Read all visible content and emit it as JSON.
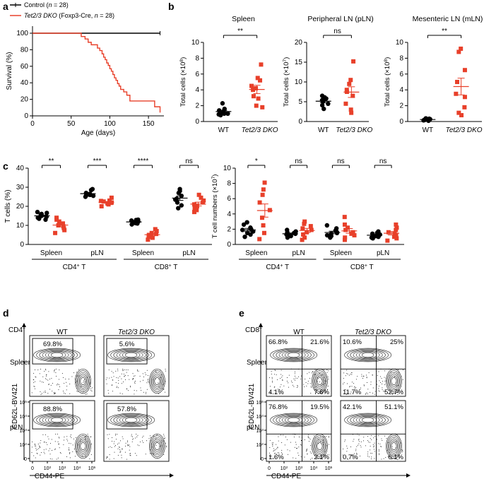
{
  "colors": {
    "control": "#000000",
    "ko": "#e8402a",
    "axis": "#000000"
  },
  "panels": {
    "a": "a",
    "b": "b",
    "c": "c",
    "d": "d",
    "e": "e"
  },
  "chart_data": [
    {
      "id": "a",
      "type": "line",
      "legend": [
        {
          "label": "Control (",
          "label_n": "n",
          "label_rest": " = 28)",
          "color": "#000000"
        },
        {
          "label_italic": "Tet2/3 DKO",
          "label": " (Foxp3-Cre, ",
          "label_n": "n",
          "label_rest": " = 28)",
          "color": "#e8402a"
        }
      ],
      "xlabel": "Age (days)",
      "ylabel": "Survival (%)",
      "xlim": [
        0,
        170
      ],
      "ylim": [
        0,
        100
      ],
      "xticks": [
        "0",
        "50",
        "100",
        "150"
      ],
      "yticks": [
        "0",
        "20",
        "40",
        "60",
        "80",
        "100"
      ],
      "series": [
        {
          "name": "Control",
          "x": [
            0,
            165
          ],
          "y": [
            100,
            100
          ]
        },
        {
          "name": "Tet2/3 DKO",
          "x": [
            0,
            57,
            63,
            68,
            72,
            76,
            80,
            84,
            87,
            90,
            92,
            94,
            96,
            98,
            100,
            102,
            104,
            106,
            108,
            110,
            112,
            114,
            118,
            122,
            126,
            150,
            158,
            165
          ],
          "y": [
            100,
            100,
            96,
            93,
            89,
            86,
            86,
            82,
            79,
            75,
            71,
            68,
            64,
            61,
            57,
            54,
            50,
            46,
            43,
            39,
            36,
            32,
            29,
            25,
            18,
            18,
            11,
            4
          ]
        }
      ]
    },
    {
      "id": "b",
      "type": "scatter",
      "groups": [
        "WT",
        "Tet2/3 DKO"
      ],
      "subplots": [
        {
          "title": "Spleen",
          "ylabel": "Total cells (×10",
          "ylabel_exp": "8",
          "ylim": [
            0,
            10
          ],
          "yticks": [
            "0",
            "2",
            "4",
            "6",
            "8",
            "10"
          ],
          "sig": "**",
          "WT": [
            1.2,
            1.0,
            1.4,
            0.8,
            1.1,
            1.3,
            0.9,
            1.0,
            1.6,
            2.3
          ],
          "DKO": [
            2.0,
            2.9,
            3.2,
            4.2,
            4.0,
            4.5,
            5.2,
            5.5,
            7.2,
            1.8
          ]
        },
        {
          "title": "Peripheral LN (pLN)",
          "ylabel": "Total cells (×10",
          "ylabel_exp": "7",
          "ylim": [
            0,
            20
          ],
          "yticks": [
            "0",
            "5",
            "10",
            "15",
            "20"
          ],
          "sig": "ns",
          "WT": [
            3.2,
            4.1,
            4.5,
            5.0,
            5.4,
            5.6,
            6.1,
            5.8,
            6.5
          ],
          "DKO": [
            2.2,
            3.0,
            4.5,
            6.5,
            7.5,
            8.0,
            9.5,
            10.5,
            15.2
          ]
        },
        {
          "title": "Mesenteric LN (mLN)",
          "ylabel": "Total cells (×10",
          "ylabel_exp": "8",
          "ylim": [
            0,
            10
          ],
          "yticks": [
            "0",
            "2",
            "4",
            "6",
            "8",
            "10"
          ],
          "sig": "**",
          "WT": [
            0.1,
            0.2,
            0.3,
            0.25,
            0.4,
            0.35,
            0.15,
            0.3,
            0.2
          ],
          "DKO": [
            0.8,
            1.1,
            1.8,
            3.1,
            3.5,
            5.0,
            6.5,
            8.8,
            9.2
          ]
        }
      ]
    },
    {
      "id": "c-left",
      "type": "scatter",
      "ylabel": "T cells (%)",
      "ylim": [
        0,
        40
      ],
      "yticks": [
        "0",
        "10",
        "20",
        "30",
        "40"
      ],
      "categories": [
        "Spleen",
        "pLN",
        "Spleen",
        "pLN"
      ],
      "bottom_groups": [
        {
          "label": "CD4",
          "sup": "+",
          "rest": " T"
        },
        {
          "label": "CD8",
          "sup": "+",
          "rest": " T"
        }
      ],
      "sig": [
        "**",
        "***",
        "****",
        "ns"
      ],
      "series": [
        {
          "name": "WT",
          "values": [
            [
              13.5,
              14.0,
              14.5,
              15.0,
              15.5,
              16.0,
              13.0,
              16.5,
              17.0
            ],
            [
              25.0,
              25.5,
              26.0,
              26.5,
              27.0,
              26.2,
              25.8,
              28.5,
              29.0
            ],
            [
              10.5,
              11.0,
              11.5,
              12.0,
              12.5,
              11.8,
              13.0,
              11.2,
              12.8
            ],
            [
              19.0,
              20.5,
              22.0,
              23.5,
              24.0,
              25.5,
              27.0,
              28.0,
              29.0
            ]
          ]
        },
        {
          "name": "Tet2/3 DKO",
          "values": [
            [
              6.0,
              7.5,
              8.5,
              9.5,
              10.0,
              11.0,
              12.0,
              13.0,
              14.0
            ],
            [
              20.0,
              21.0,
              21.5,
              22.0,
              22.5,
              23.0,
              21.8,
              22.8,
              24.5
            ],
            [
              2.5,
              3.5,
              4.0,
              4.5,
              5.0,
              5.5,
              6.0,
              7.0,
              8.0
            ],
            [
              17.0,
              18.0,
              19.0,
              20.0,
              21.0,
              22.0,
              23.0,
              24.5,
              26.0
            ]
          ]
        }
      ]
    },
    {
      "id": "c-right",
      "type": "scatter",
      "ylabel": "T cell numbers (×10",
      "ylabel_exp": "7",
      "ylim": [
        0,
        10
      ],
      "yticks": [
        "0",
        "2",
        "4",
        "6",
        "8",
        "10"
      ],
      "categories": [
        "Spleen",
        "pLN",
        "Spleen",
        "pLN"
      ],
      "bottom_groups": [
        {
          "label": "CD4",
          "sup": "+",
          "rest": " T"
        },
        {
          "label": "CD8",
          "sup": "+",
          "rest": " T"
        }
      ],
      "sig": [
        "*",
        "ns",
        "ns",
        "ns"
      ],
      "series": [
        {
          "name": "WT",
          "values": [
            [
              1.0,
              1.3,
              1.5,
              1.7,
              1.9,
              2.0,
              2.2,
              2.6,
              2.9
            ],
            [
              0.9,
              1.1,
              1.2,
              1.3,
              1.4,
              1.5,
              1.6,
              1.7,
              1.9
            ],
            [
              0.9,
              1.1,
              1.2,
              1.4,
              1.5,
              1.6,
              1.8,
              2.1,
              2.5
            ],
            [
              0.8,
              0.9,
              1.0,
              1.1,
              1.2,
              1.3,
              1.4,
              1.5,
              1.7
            ]
          ]
        },
        {
          "name": "Tet2/3 DKO",
          "values": [
            [
              0.7,
              1.5,
              2.5,
              3.5,
              4.5,
              5.5,
              6.5,
              7.2,
              8.1
            ],
            [
              0.6,
              0.9,
              1.3,
              1.6,
              1.9,
              2.1,
              2.4,
              2.7,
              3.0
            ],
            [
              0.6,
              0.9,
              1.2,
              1.4,
              1.6,
              1.9,
              2.2,
              2.6,
              3.6
            ],
            [
              0.5,
              0.8,
              1.0,
              1.2,
              1.4,
              1.6,
              1.9,
              2.2,
              2.6
            ]
          ]
        }
      ]
    },
    {
      "id": "d",
      "type": "flow-contour",
      "corner": "CD4",
      "corner_sup": "+",
      "columns": [
        "WT",
        "Tet2/3 DKO"
      ],
      "rows": [
        "Spleen",
        "pLN"
      ],
      "xlabel": "CD44-PE",
      "ylabel": "CD62L-BV421",
      "xticks": [
        "0",
        "10",
        "10",
        "10",
        "10"
      ],
      "xtick_exps": [
        "",
        "2",
        "3",
        "4",
        "5"
      ],
      "yticks": [
        "0",
        "10",
        "10",
        "10",
        "10"
      ],
      "ytick_exps": [
        "",
        "2",
        "3",
        "4",
        "5"
      ],
      "gates": [
        [
          "69.8%",
          "5.6%"
        ],
        [
          "88.8%",
          "57.8%"
        ]
      ]
    },
    {
      "id": "e",
      "type": "flow-contour",
      "corner": "CD8",
      "corner_sup": "+",
      "columns": [
        "WT",
        "Tet2/3 DKO"
      ],
      "rows": [
        "Spleen",
        "pLN"
      ],
      "xlabel": "CD44-PE",
      "ylabel": "CD62L-BV421",
      "xticks": [
        "0",
        "10",
        "10",
        "10",
        "10"
      ],
      "xtick_exps": [
        "",
        "2",
        "3",
        "4",
        "5"
      ],
      "yticks": [
        "0",
        "10",
        "10",
        "10",
        "10"
      ],
      "ytick_exps": [
        "",
        "2",
        "3",
        "4",
        "5"
      ],
      "quadrants": [
        [
          [
            "66.8%",
            "21.6%",
            "4.1%",
            "7.6%"
          ],
          [
            "10.6%",
            "25%",
            "11.7%",
            "52.7%"
          ]
        ],
        [
          [
            "76.8%",
            "19.5%",
            "1.6%",
            "2.1%"
          ],
          [
            "42.1%",
            "51.1%",
            "0.7%",
            "6.1%"
          ]
        ]
      ]
    }
  ]
}
